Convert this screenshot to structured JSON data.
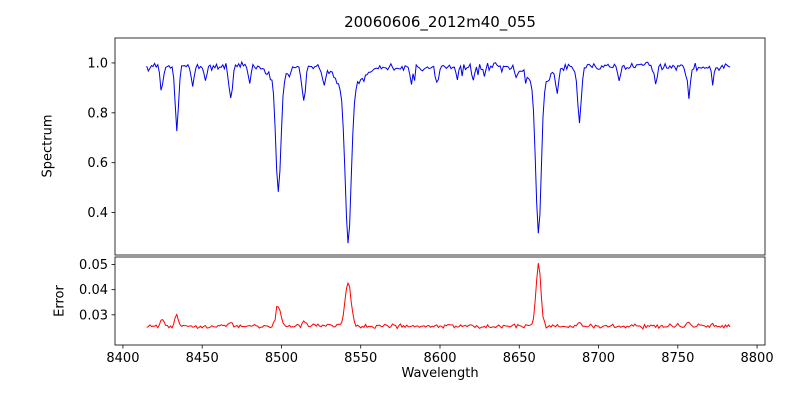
{
  "title": "20060606_2012m40_055",
  "xlabel": "Wavelength",
  "background_color": "#ffffff",
  "frame_color": "#000000",
  "xaxis": {
    "xlim": [
      8395,
      8805
    ],
    "ticks": [
      {
        "v": 8400,
        "label": "8400"
      },
      {
        "v": 8450,
        "label": "8450"
      },
      {
        "v": 8500,
        "label": "8500"
      },
      {
        "v": 8550,
        "label": "8550"
      },
      {
        "v": 8600,
        "label": "8600"
      },
      {
        "v": 8650,
        "label": "8650"
      },
      {
        "v": 8700,
        "label": "8700"
      },
      {
        "v": 8750,
        "label": "8750"
      },
      {
        "v": 8800,
        "label": "8800"
      }
    ]
  },
  "chart_data": [
    {
      "type": "line",
      "series_name": "spectrum",
      "ylabel": "Spectrum",
      "color": "#0000ee",
      "ylim": [
        0.23,
        1.1
      ],
      "yticks": [
        {
          "v": 0.4,
          "label": "0.4"
        },
        {
          "v": 0.6,
          "label": "0.6"
        },
        {
          "v": 0.8,
          "label": "0.8"
        },
        {
          "v": 1.0,
          "label": "1.0"
        }
      ],
      "x_start": 8415,
      "x_end": 8783,
      "x_step": 1.0,
      "continuum": 0.985,
      "noise_amp": 0.022,
      "spike_prob": 0.05,
      "spike_max": 0.04,
      "seed": 1234,
      "absorption_lines": [
        {
          "center": 8424.5,
          "depth": 0.1,
          "width": 0.9
        },
        {
          "center": 8434.0,
          "depth": 0.25,
          "width": 1.1
        },
        {
          "center": 8444.0,
          "depth": 0.07,
          "width": 0.9
        },
        {
          "center": 8452.0,
          "depth": 0.05,
          "width": 0.8
        },
        {
          "center": 8468.0,
          "depth": 0.13,
          "width": 1.0
        },
        {
          "center": 8480.0,
          "depth": 0.06,
          "width": 0.9
        },
        {
          "center": 8498.0,
          "depth": 0.45,
          "width": 1.5
        },
        {
          "center": 8498.0,
          "depth": 0.06,
          "width": 5.0
        },
        {
          "center": 8514.0,
          "depth": 0.15,
          "width": 1.0
        },
        {
          "center": 8527.0,
          "depth": 0.06,
          "width": 0.9
        },
        {
          "center": 8542.1,
          "depth": 0.6,
          "width": 1.9
        },
        {
          "center": 8542.1,
          "depth": 0.1,
          "width": 6.5
        },
        {
          "center": 8582.0,
          "depth": 0.07,
          "width": 0.9
        },
        {
          "center": 8598.0,
          "depth": 0.07,
          "width": 0.9
        },
        {
          "center": 8611.0,
          "depth": 0.05,
          "width": 0.8
        },
        {
          "center": 8621.0,
          "depth": 0.06,
          "width": 0.9
        },
        {
          "center": 8648.0,
          "depth": 0.05,
          "width": 0.8
        },
        {
          "center": 8662.1,
          "depth": 0.57,
          "width": 1.7
        },
        {
          "center": 8662.1,
          "depth": 0.09,
          "width": 5.5
        },
        {
          "center": 8674.0,
          "depth": 0.11,
          "width": 0.9
        },
        {
          "center": 8688.0,
          "depth": 0.21,
          "width": 1.2
        },
        {
          "center": 8713.0,
          "depth": 0.06,
          "width": 0.9
        },
        {
          "center": 8736.0,
          "depth": 0.07,
          "width": 0.9
        },
        {
          "center": 8757.0,
          "depth": 0.12,
          "width": 1.0
        },
        {
          "center": 8772.0,
          "depth": 0.06,
          "width": 0.9
        }
      ]
    },
    {
      "type": "line",
      "series_name": "error",
      "ylabel": "Error",
      "color": "#ff0000",
      "ylim": [
        0.018,
        0.053
      ],
      "yticks": [
        {
          "v": 0.03,
          "label": "0.03"
        },
        {
          "v": 0.04,
          "label": "0.04"
        },
        {
          "v": 0.05,
          "label": "0.05"
        }
      ],
      "x_start": 8415,
      "x_end": 8783,
      "x_step": 1.0,
      "baseline": 0.0255,
      "noise_amp": 0.0012,
      "spike_prob": 0.04,
      "spike_max": 0.0015,
      "seed": 777,
      "peaks": [
        {
          "center": 8424.5,
          "amp": 0.0025,
          "width": 1.0
        },
        {
          "center": 8434.0,
          "amp": 0.004,
          "width": 1.1
        },
        {
          "center": 8468.0,
          "amp": 0.0015,
          "width": 1.0
        },
        {
          "center": 8498.0,
          "amp": 0.008,
          "width": 1.5
        },
        {
          "center": 8514.0,
          "amp": 0.0015,
          "width": 1.0
        },
        {
          "center": 8542.1,
          "amp": 0.017,
          "width": 1.9
        },
        {
          "center": 8662.1,
          "amp": 0.0245,
          "width": 1.5
        },
        {
          "center": 8688.0,
          "amp": 0.002,
          "width": 1.2
        },
        {
          "center": 8757.0,
          "amp": 0.0018,
          "width": 1.0
        }
      ]
    }
  ]
}
